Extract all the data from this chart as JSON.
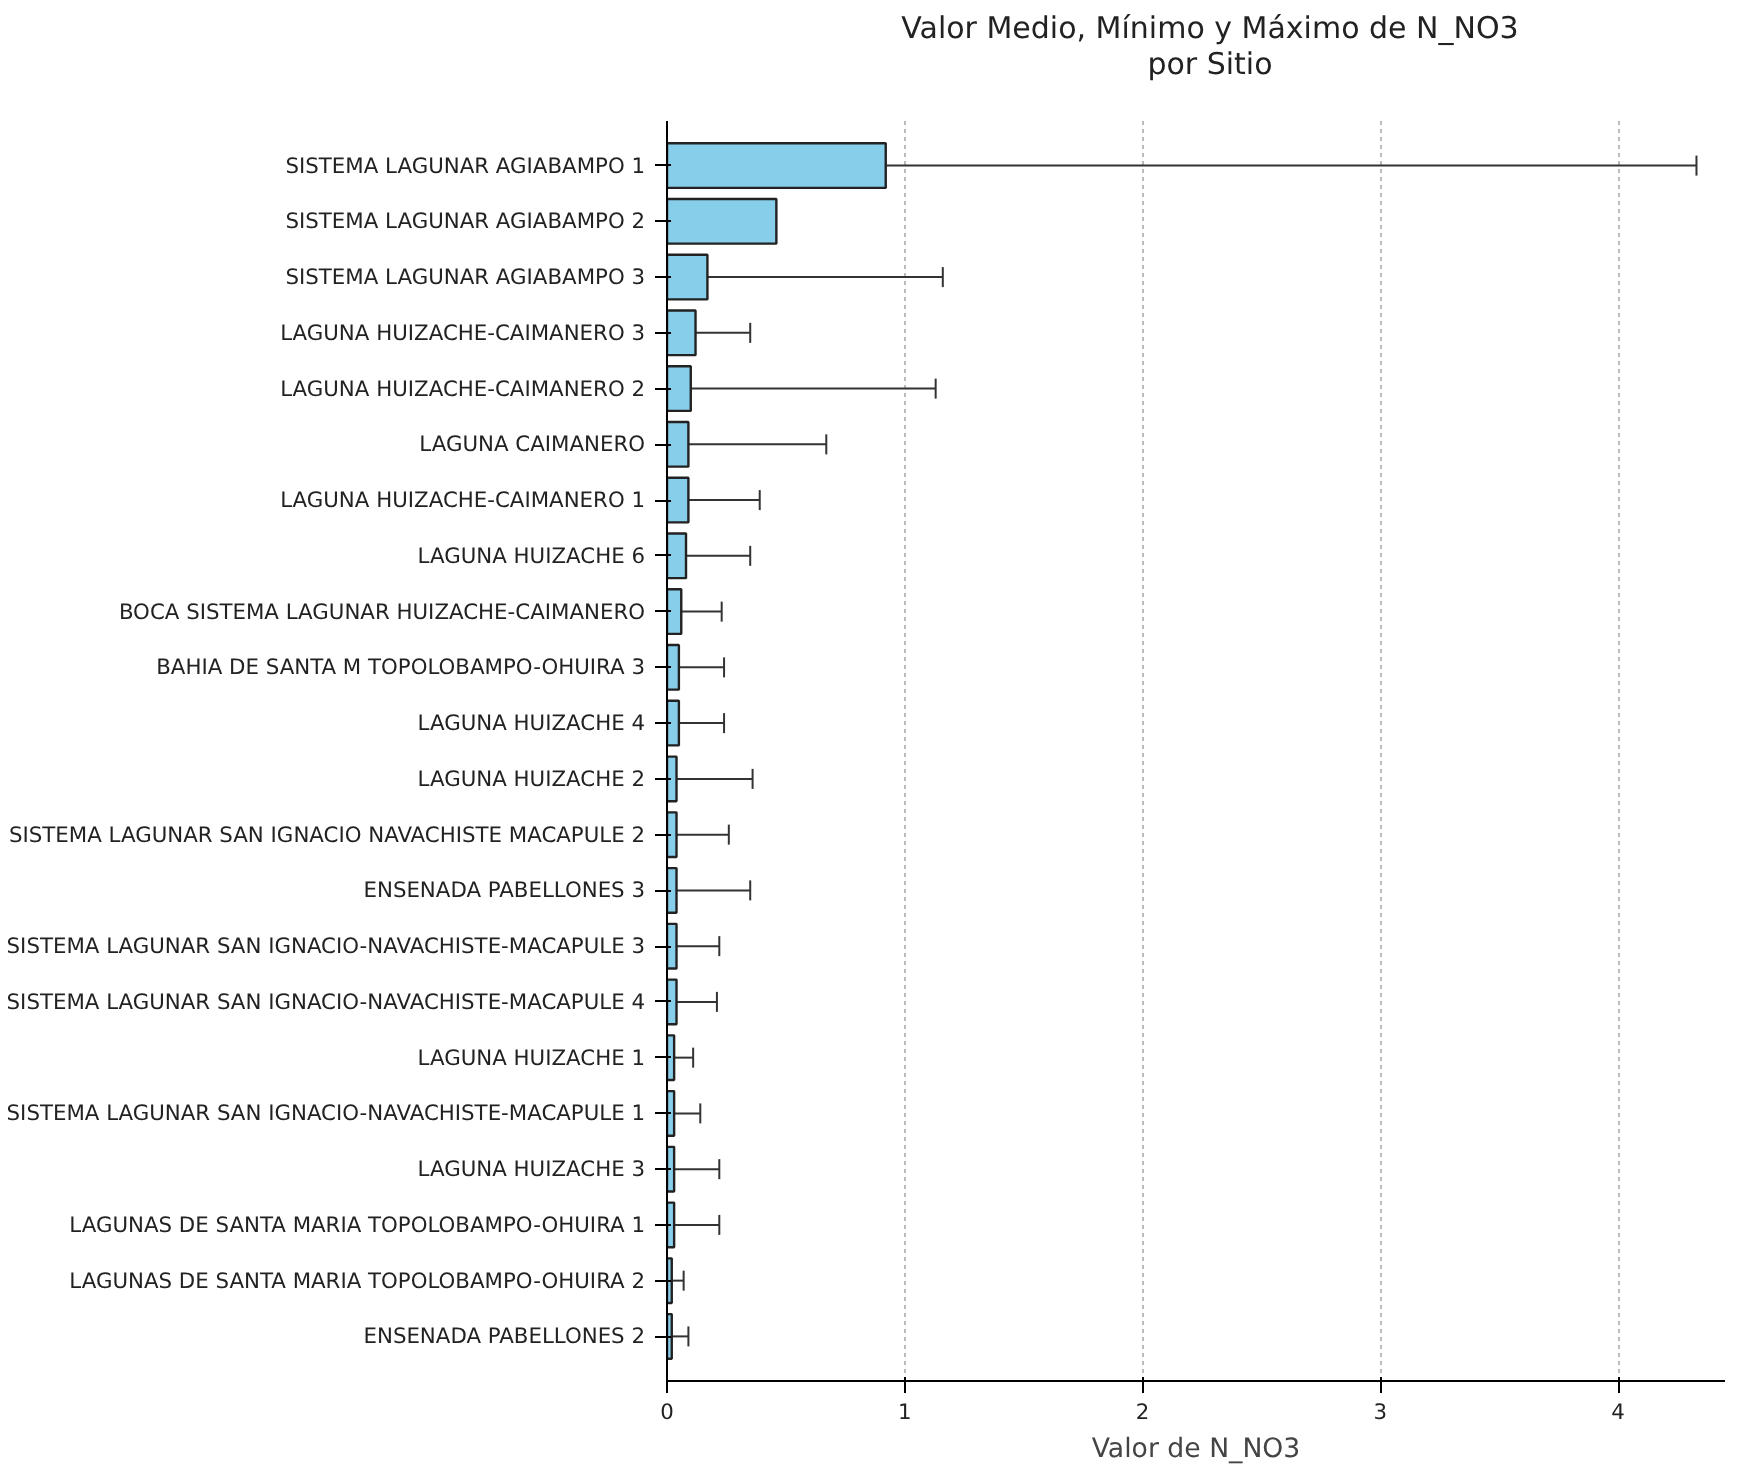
{
  "chart_data": {
    "type": "bar",
    "orientation": "horizontal",
    "title": "Valor Medio, Mínimo y Máximo de N_NO3\npor Sitio",
    "xlabel": "Valor de N_NO3",
    "categories": [
      "SISTEMA LAGUNAR AGIABAMPO 1",
      "SISTEMA LAGUNAR AGIABAMPO 2",
      "SISTEMA LAGUNAR AGIABAMPO 3",
      "LAGUNA HUIZACHE-CAIMANERO 3",
      "LAGUNA HUIZACHE-CAIMANERO 2",
      "LAGUNA CAIMANERO",
      "LAGUNA HUIZACHE-CAIMANERO 1",
      "LAGUNA HUIZACHE 6",
      "BOCA SISTEMA LAGUNAR HUIZACHE-CAIMANERO",
      "BAHIA DE SANTA M TOPOLOBAMPO-OHUIRA 3",
      "LAGUNA HUIZACHE 4",
      "LAGUNA HUIZACHE 2",
      "SISTEMA LAGUNAR SAN IGNACIO NAVACHISTE MACAPULE 2",
      "ENSENADA PABELLONES 3",
      "SISTEMA LAGUNAR SAN IGNACIO-NAVACHISTE-MACAPULE 3",
      "SISTEMA LAGUNAR SAN IGNACIO-NAVACHISTE-MACAPULE 4",
      "LAGUNA HUIZACHE 1",
      "SISTEMA LAGUNAR SAN IGNACIO-NAVACHISTE-MACAPULE 1",
      "LAGUNA HUIZACHE 3",
      "LAGUNAS DE SANTA MARIA TOPOLOBAMPO-OHUIRA 1",
      "LAGUNAS DE SANTA MARIA TOPOLOBAMPO-OHUIRA 2",
      "ENSENADA PABELLONES 2"
    ],
    "values": [
      0.92,
      0.46,
      0.17,
      0.12,
      0.1,
      0.09,
      0.09,
      0.08,
      0.06,
      0.05,
      0.05,
      0.04,
      0.04,
      0.04,
      0.04,
      0.04,
      0.03,
      0.03,
      0.03,
      0.03,
      0.02,
      0.02
    ],
    "errors": [
      [
        0,
        4.33
      ],
      null,
      [
        0,
        1.16
      ],
      [
        0,
        0.35
      ],
      [
        0,
        1.13
      ],
      [
        0,
        0.67
      ],
      [
        0,
        0.39
      ],
      [
        0,
        0.35
      ],
      [
        0,
        0.23
      ],
      [
        0,
        0.24
      ],
      [
        0,
        0.24
      ],
      [
        0,
        0.36
      ],
      [
        0,
        0.26
      ],
      [
        0,
        0.35
      ],
      [
        0,
        0.22
      ],
      [
        0,
        0.21
      ],
      [
        0.03,
        0.11
      ],
      [
        0,
        0.14
      ],
      [
        0,
        0.22
      ],
      [
        0,
        0.22
      ],
      [
        0.02,
        0.07
      ],
      [
        0.02,
        0.09
      ]
    ],
    "color": "#87ceeb",
    "xlim": [
      0,
      4.45
    ],
    "xticks": [
      0,
      1,
      2,
      3,
      4
    ],
    "grid": "x"
  }
}
